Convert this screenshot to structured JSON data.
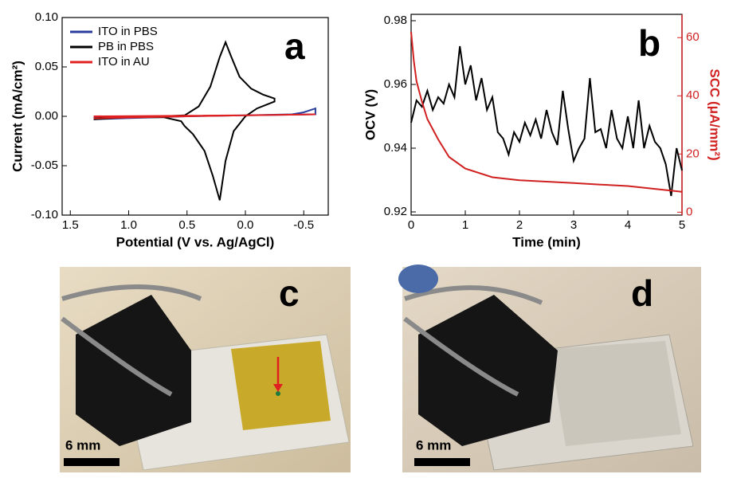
{
  "chart_data": [
    {
      "type": "line",
      "panel_label": "a",
      "x_label": "Potential (V vs. Ag/AgCl)",
      "y_label": "Current (mA/cm²)",
      "xlim": [
        1.57,
        -0.71
      ],
      "xticks": [
        {
          "value": 1.5,
          "label": "1.5"
        },
        {
          "value": 1,
          "label": "1.0"
        },
        {
          "value": 0.5,
          "label": "0.5"
        },
        {
          "value": 0,
          "label": "0.0"
        },
        {
          "value": -0.5,
          "label": "-0.5"
        }
      ],
      "ylim": [
        -0.1,
        0.1
      ],
      "yticks": [
        {
          "value": 0.1,
          "label": "0.10"
        },
        0.05,
        {
          "value": 0,
          "label": "0.00"
        },
        -0.05,
        {
          "value": -0.1,
          "label": "-0.10"
        }
      ],
      "legend": "upper left",
      "series": [
        {
          "name": "ITO in PBS",
          "color": "#2a3d9c",
          "x": [
            1.3,
            0.5,
            0,
            -0.4,
            -0.5,
            -0.6,
            -0.6,
            0,
            1.3
          ],
          "values": [
            -0.003,
            0,
            0.001,
            0.002,
            0.004,
            0.008,
            0.002,
            0.001,
            -0.001
          ]
        },
        {
          "name": "PB in PBS",
          "color": "#000000",
          "x": [
            1.3,
            1.0,
            0.7,
            0.52,
            0.4,
            0.3,
            0.22,
            0.17,
            0.12,
            0.05,
            -0.05,
            -0.15,
            -0.25,
            -0.25,
            -0.1,
            0.0,
            0.1,
            0.17,
            0.22,
            0.28,
            0.35,
            0.45,
            0.52,
            0.55,
            0.7,
            1.0,
            1.3
          ],
          "values": [
            -0.002,
            0,
            0,
            0.001,
            0.01,
            0.03,
            0.06,
            0.075,
            0.06,
            0.04,
            0.028,
            0.022,
            0.018,
            0.015,
            0.008,
            0,
            -0.015,
            -0.045,
            -0.085,
            -0.06,
            -0.035,
            -0.018,
            -0.01,
            -0.005,
            -0.001,
            -0.001,
            -0.003
          ]
        },
        {
          "name": "ITO in AU",
          "color": "#e02020",
          "x": [
            1.3,
            0.5,
            0,
            -0.6,
            0,
            1.3
          ],
          "values": [
            -0.002,
            0,
            0.001,
            0.002,
            0.001,
            0
          ]
        }
      ]
    },
    {
      "type": "line",
      "panel_label": "b",
      "x_label": "Time (min)",
      "y_label": "OCV (V)",
      "y2_label": "SCC (μA/mm²)",
      "xlim": [
        0,
        5
      ],
      "xticks": [
        0,
        1,
        2,
        3,
        4,
        5
      ],
      "ylim": [
        0.919,
        0.982
      ],
      "yticks": [
        0.92,
        0.94,
        0.96,
        0.98
      ],
      "y2lim": [
        -1,
        68
      ],
      "y2ticks": [
        0,
        20,
        40,
        60
      ],
      "y2_color": "#d02020",
      "series": [
        {
          "color": "#000000",
          "x": [
            0,
            0.1,
            0.2,
            0.3,
            0.4,
            0.5,
            0.6,
            0.7,
            0.8,
            0.9,
            1.0,
            1.1,
            1.2,
            1.3,
            1.4,
            1.5,
            1.6,
            1.7,
            1.8,
            1.9,
            2.0,
            2.1,
            2.2,
            2.3,
            2.4,
            2.5,
            2.6,
            2.7,
            2.8,
            2.9,
            3.0,
            3.1,
            3.2,
            3.3,
            3.4,
            3.5,
            3.6,
            3.7,
            3.8,
            3.9,
            4.0,
            4.1,
            4.2,
            4.3,
            4.4,
            4.5,
            4.6,
            4.7,
            4.8,
            4.9,
            5.0
          ],
          "values": [
            0.948,
            0.955,
            0.953,
            0.958,
            0.952,
            0.956,
            0.954,
            0.96,
            0.956,
            0.972,
            0.96,
            0.966,
            0.955,
            0.962,
            0.952,
            0.956,
            0.945,
            0.943,
            0.938,
            0.945,
            0.942,
            0.948,
            0.944,
            0.949,
            0.943,
            0.952,
            0.945,
            0.941,
            0.958,
            0.946,
            0.936,
            0.94,
            0.943,
            0.962,
            0.945,
            0.946,
            0.94,
            0.952,
            0.943,
            0.94,
            0.95,
            0.94,
            0.955,
            0.94,
            0.947,
            0.942,
            0.94,
            0.935,
            0.925,
            0.94,
            0.933
          ]
        },
        {
          "color": "#d02020",
          "axis": "y2",
          "x": [
            0,
            0.05,
            0.1,
            0.2,
            0.3,
            0.5,
            0.7,
            1.0,
            1.5,
            2.0,
            2.5,
            3.0,
            3.5,
            4.0,
            4.5,
            5.0
          ],
          "values": [
            62,
            52,
            45,
            38,
            32,
            25,
            19,
            15,
            12,
            11,
            10.5,
            10,
            9.5,
            9,
            8,
            7
          ]
        }
      ]
    }
  ],
  "photos": [
    {
      "panel_label": "c",
      "scale_bar": "6 mm"
    },
    {
      "panel_label": "d",
      "scale_bar": "6 mm"
    }
  ]
}
